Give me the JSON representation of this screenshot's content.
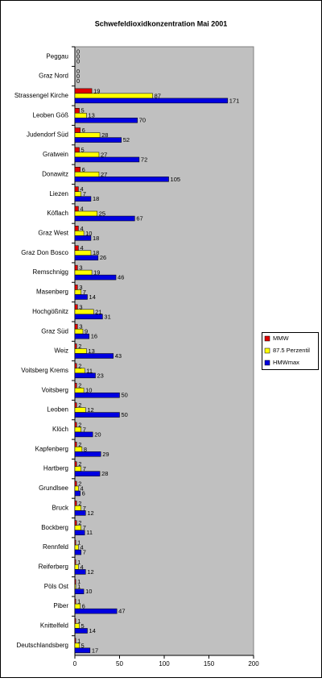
{
  "chart_data": {
    "type": "hbar",
    "title": "Schwefeldioxidkonzentration Mai 2001",
    "categories": [
      "Peggau",
      "Graz Nord",
      "Strassengel Kirche",
      "Leoben Göß",
      "Judendorf Süd",
      "Gratwein",
      "Donawitz",
      "Liezen",
      "Köflach",
      "Graz West",
      "Graz Don Bosco",
      "Remschnigg",
      "Masenberg",
      "Hochgößnitz",
      "Graz Süd",
      "Weiz",
      "Voitsberg Krems",
      "Voitsberg",
      "Leoben",
      "Klöch",
      "Kapfenberg",
      "Hartberg",
      "Grundlsee",
      "Bruck",
      "Bockberg",
      "Rennfeld",
      "Reiferberg",
      "Pöls Ost",
      "Piber",
      "Knittelfeld",
      "Deutschlandsberg"
    ],
    "series": [
      {
        "name": "MMW",
        "color": "#e00000",
        "values": [
          0,
          0,
          19,
          5,
          6,
          5,
          6,
          4,
          4,
          4,
          4,
          3,
          3,
          3,
          3,
          2,
          2,
          2,
          2,
          2,
          2,
          2,
          2,
          2,
          2,
          1,
          1,
          1,
          1,
          1,
          1
        ]
      },
      {
        "name": "87.5 Perzentil",
        "color": "#ffff00",
        "values": [
          0,
          0,
          87,
          13,
          28,
          27,
          27,
          7,
          25,
          10,
          18,
          19,
          7,
          21,
          9,
          13,
          11,
          10,
          12,
          7,
          8,
          7,
          4,
          7,
          7,
          4,
          4,
          1,
          6,
          5,
          5
        ]
      },
      {
        "name": "HMWmax",
        "color": "#0000e0",
        "values": [
          0,
          0,
          171,
          70,
          52,
          72,
          105,
          18,
          67,
          18,
          26,
          46,
          14,
          31,
          16,
          43,
          23,
          50,
          50,
          20,
          29,
          28,
          6,
          12,
          11,
          7,
          12,
          10,
          47,
          14,
          17
        ]
      }
    ],
    "xlim": [
      0,
      200
    ],
    "xticks": [
      0,
      50,
      100,
      150,
      200
    ],
    "legend": "right"
  }
}
